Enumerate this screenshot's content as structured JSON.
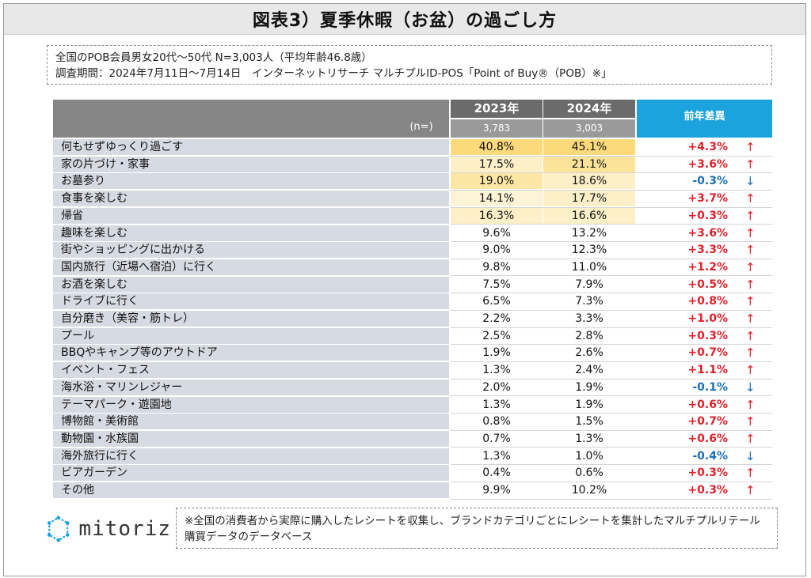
{
  "title": "図表3）夏季休暇（お盆）の過ごし方",
  "info": {
    "line1": "全国のPOB会員男女20代～50代 N=3,003人（平均年齢46.8歳）",
    "line2": "調査期間：2024年7月11日～7月14日　インターネットリサーチ マルチプルID-POS「Point of Buy®（POB）※」"
  },
  "table": {
    "n_label": "(n=)",
    "year1": "2023年",
    "year2": "2024年",
    "n1": "3,783",
    "n2": "3,003",
    "diff_header": "前年差異",
    "rows": [
      {
        "label": "何もせずゆっくり過ごす",
        "v2023": "40.8%",
        "v2024": "45.1%",
        "diff": "+4.3%",
        "dir": "up",
        "h2023": "#fcd97a",
        "h2024": "#fcd97a"
      },
      {
        "label": "家の片づけ・家事",
        "v2023": "17.5%",
        "v2024": "21.1%",
        "diff": "+3.6%",
        "dir": "up",
        "h2023": "#fdf0c8",
        "h2024": "#fce39a"
      },
      {
        "label": "お墓参り",
        "v2023": "19.0%",
        "v2024": "18.6%",
        "diff": "-0.3%",
        "dir": "down",
        "h2023": "#fce6a4",
        "h2024": "#fdf0c8"
      },
      {
        "label": "食事を楽しむ",
        "v2023": "14.1%",
        "v2024": "17.7%",
        "diff": "+3.7%",
        "dir": "up",
        "h2023": "#fdf3d6",
        "h2024": "#fdf0c8"
      },
      {
        "label": "帰省",
        "v2023": "16.3%",
        "v2024": "16.6%",
        "diff": "+0.3%",
        "dir": "up",
        "h2023": "#fdf0c8",
        "h2024": "#fdf0c8"
      },
      {
        "label": "趣味を楽しむ",
        "v2023": "9.6%",
        "v2024": "13.2%",
        "diff": "+3.6%",
        "dir": "up"
      },
      {
        "label": "街やショッピングに出かける",
        "v2023": "9.0%",
        "v2024": "12.3%",
        "diff": "+3.3%",
        "dir": "up"
      },
      {
        "label": "国内旅行（近場へ宿泊）に行く",
        "v2023": "9.8%",
        "v2024": "11.0%",
        "diff": "+1.2%",
        "dir": "up"
      },
      {
        "label": "お酒を楽しむ",
        "v2023": "7.5%",
        "v2024": "7.9%",
        "diff": "+0.5%",
        "dir": "up"
      },
      {
        "label": "ドライブに行く",
        "v2023": "6.5%",
        "v2024": "7.3%",
        "diff": "+0.8%",
        "dir": "up"
      },
      {
        "label": "自分磨き（美容・筋トレ）",
        "v2023": "2.2%",
        "v2024": "3.3%",
        "diff": "+1.0%",
        "dir": "up"
      },
      {
        "label": "プール",
        "v2023": "2.5%",
        "v2024": "2.8%",
        "diff": "+0.3%",
        "dir": "up"
      },
      {
        "label": "BBQやキャンプ等のアウトドア",
        "v2023": "1.9%",
        "v2024": "2.6%",
        "diff": "+0.7%",
        "dir": "up"
      },
      {
        "label": "イベント・フェス",
        "v2023": "1.3%",
        "v2024": "2.4%",
        "diff": "+1.1%",
        "dir": "up"
      },
      {
        "label": "海水浴・マリンレジャー",
        "v2023": "2.0%",
        "v2024": "1.9%",
        "diff": "-0.1%",
        "dir": "down"
      },
      {
        "label": "テーマパーク・遊園地",
        "v2023": "1.3%",
        "v2024": "1.9%",
        "diff": "+0.6%",
        "dir": "up"
      },
      {
        "label": "博物館・美術館",
        "v2023": "0.8%",
        "v2024": "1.5%",
        "diff": "+0.7%",
        "dir": "up"
      },
      {
        "label": "動物園・水族園",
        "v2023": "0.7%",
        "v2024": "1.3%",
        "diff": "+0.6%",
        "dir": "up"
      },
      {
        "label": "海外旅行に行く",
        "v2023": "1.3%",
        "v2024": "1.0%",
        "diff": "-0.4%",
        "dir": "down"
      },
      {
        "label": "ビアガーデン",
        "v2023": "0.4%",
        "v2024": "0.6%",
        "diff": "+0.3%",
        "dir": "up"
      },
      {
        "label": "その他",
        "v2023": "9.9%",
        "v2024": "10.2%",
        "diff": "+0.3%",
        "dir": "up"
      }
    ]
  },
  "arrows": {
    "up": "↑",
    "down": "↓"
  },
  "logo": {
    "text": "mitoriz",
    "icon": "mitoriz-logo-icon",
    "color": "#1aa3dc"
  },
  "note": "※全国の消費者から実際に購入したレシートを収集し、ブランドカテゴリごとにレシートを集計したマルチプルリテール購買データのデータベース"
}
